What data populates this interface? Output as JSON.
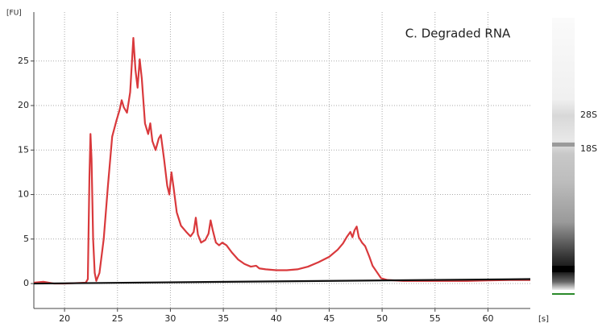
{
  "chart_data": {
    "type": "line",
    "title": "C. Degraded RNA",
    "ylabel": "[FU]",
    "xlabel": "[s]",
    "xlim": [
      17.1,
      64
    ],
    "ylim": [
      -2.8,
      30.5
    ],
    "xticks": [
      20,
      25,
      30,
      35,
      40,
      45,
      50,
      55,
      60
    ],
    "yticks": [
      0,
      5,
      10,
      15,
      20,
      25
    ],
    "grid": true,
    "series": [
      {
        "color": "#d9393c",
        "x": [
          17.1,
          18,
          19,
          20,
          22,
          22.2,
          22.35,
          22.45,
          22.55,
          22.7,
          22.85,
          23,
          23.3,
          23.7,
          24.1,
          24.5,
          24.9,
          25.2,
          25.4,
          25.6,
          25.9,
          26.2,
          26.5,
          26.7,
          26.9,
          27.1,
          27.3,
          27.6,
          27.9,
          28.1,
          28.3,
          28.6,
          28.9,
          29.1,
          29.4,
          29.7,
          29.9,
          30.1,
          30.3,
          30.6,
          31,
          31.5,
          31.9,
          32.2,
          32.4,
          32.6,
          32.9,
          33.3,
          33.6,
          33.8,
          34,
          34.3,
          34.6,
          34.9,
          35.3,
          35.8,
          36.4,
          37,
          37.6,
          38.1,
          38.4,
          39,
          40,
          41,
          42,
          43,
          44,
          45,
          45.8,
          46.3,
          46.7,
          47,
          47.2,
          47.4,
          47.6,
          47.8,
          48.1,
          48.4,
          48.8,
          49.1,
          49.5,
          49.9,
          50.5,
          52,
          54,
          56,
          58,
          60,
          62,
          64
        ],
        "values": [
          0.1,
          0.2,
          0,
          0,
          0.1,
          0.5,
          12,
          16.8,
          14,
          5,
          1.2,
          0.3,
          1.2,
          5,
          11,
          16.5,
          18.3,
          19.5,
          20.6,
          19.8,
          19.2,
          21.5,
          27.6,
          24,
          22,
          25.2,
          23,
          18,
          16.8,
          18,
          16,
          15,
          16.3,
          16.7,
          14,
          11,
          10,
          12.5,
          10.8,
          8,
          6.5,
          5.8,
          5.3,
          5.8,
          7.4,
          5.5,
          4.6,
          4.9,
          5.6,
          7.1,
          6,
          4.6,
          4.3,
          4.6,
          4.3,
          3.5,
          2.7,
          2.2,
          1.9,
          2,
          1.7,
          1.6,
          1.5,
          1.5,
          1.6,
          1.9,
          2.4,
          3,
          3.8,
          4.5,
          5.3,
          5.8,
          5.2,
          6,
          6.4,
          5.2,
          4.6,
          4.2,
          3,
          2,
          1.3,
          0.6,
          0.4,
          0.3,
          0.3,
          0.3,
          0.3,
          0.35,
          0.4,
          0.4
        ]
      },
      {
        "color": "#111111",
        "x": [
          17.1,
          64
        ],
        "values": [
          0,
          0.5
        ]
      }
    ],
    "gel_labels": [
      "28S",
      "18S"
    ]
  }
}
